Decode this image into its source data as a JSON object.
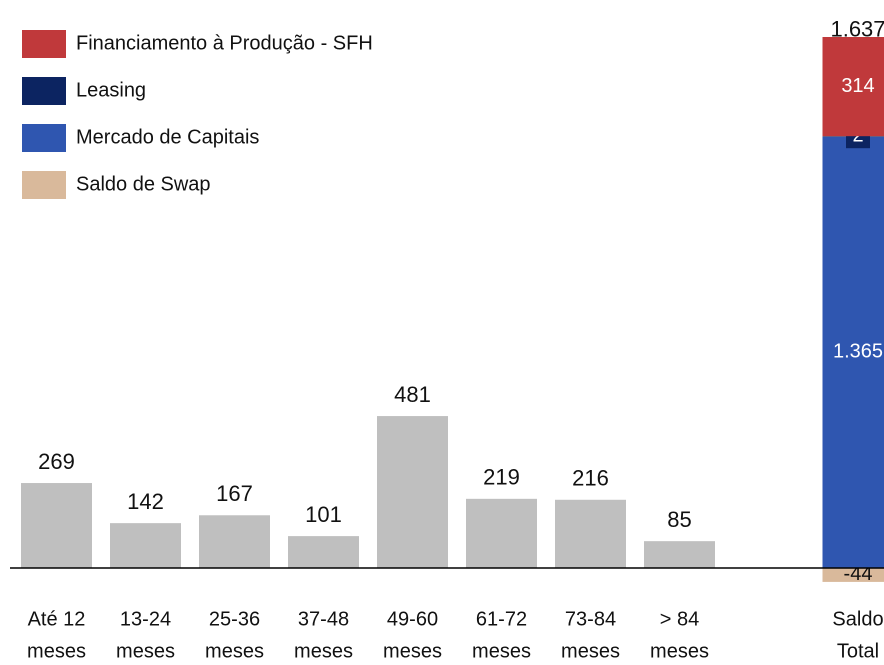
{
  "chart_data": {
    "type": "bar",
    "categories": [
      [
        "Até 12",
        "meses"
      ],
      [
        "13-24",
        "meses"
      ],
      [
        "25-36",
        "meses"
      ],
      [
        "37-48",
        "meses"
      ],
      [
        "49-60",
        "meses"
      ],
      [
        "61-72",
        "meses"
      ],
      [
        "73-84",
        "meses"
      ],
      [
        "> 84",
        "meses"
      ]
    ],
    "values": [
      269,
      142,
      167,
      101,
      481,
      219,
      216,
      85
    ],
    "color": "#bfbfbf",
    "ylim": [
      -100,
      1700
    ],
    "stack": {
      "category": [
        "Saldo",
        "Total"
      ],
      "total": 1637,
      "total_label": "1.637",
      "series": [
        {
          "name": "Financiamento à Produção - SFH",
          "color": "#c0393b",
          "values": [
            314
          ],
          "value_labels": [
            "314"
          ]
        },
        {
          "name": "Leasing",
          "color": "#0c2461",
          "values": [
            2
          ],
          "value_labels": [
            "2"
          ]
        },
        {
          "name": "Mercado de Capitais",
          "color": "#2f56b0",
          "values": [
            1365
          ],
          "value_labels": [
            "1.365"
          ]
        },
        {
          "name": "Saldo de Swap",
          "color": "#d9b99b",
          "values": [
            -44
          ],
          "value_labels": [
            "-44"
          ]
        }
      ]
    },
    "legend": "upper left"
  }
}
